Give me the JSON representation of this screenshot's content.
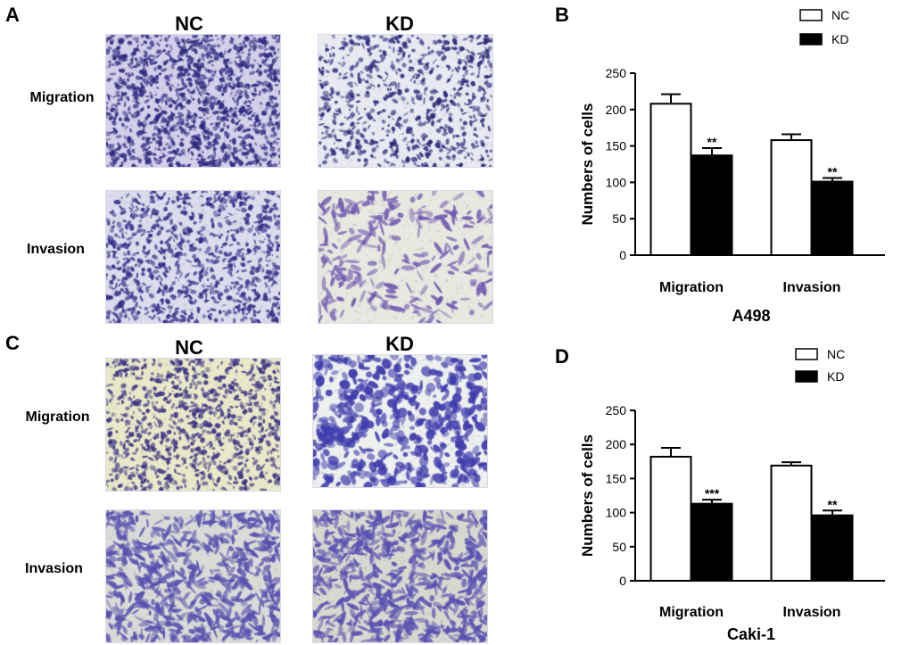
{
  "panels": {
    "A": {
      "letter": "A",
      "col_headers": [
        "NC",
        "KD"
      ],
      "row_labels": [
        "Migration",
        "Invasion"
      ],
      "images": [
        {
          "name": "micrograph-a498-nc-migration",
          "bg": "#d4d0ea",
          "fg": "#2f2a80",
          "density": 1200,
          "cell": "small"
        },
        {
          "name": "micrograph-a498-kd-migration",
          "bg": "#e8e9f1",
          "fg": "#2c2a7a",
          "density": 700,
          "cell": "small"
        },
        {
          "name": "micrograph-a498-nc-invasion",
          "bg": "#dcdcec",
          "fg": "#332d88",
          "density": 900,
          "cell": "small"
        },
        {
          "name": "micrograph-a498-kd-invasion",
          "bg": "#e7e8df",
          "fg": "#6f58b0",
          "density": 230,
          "cell": "elongated"
        }
      ]
    },
    "C": {
      "letter": "C",
      "col_headers": [
        "NC",
        "KD"
      ],
      "row_labels": [
        "Migration",
        "Invasion"
      ],
      "images": [
        {
          "name": "micrograph-caki1-nc-migration",
          "bg": "#e9e9c9",
          "fg": "#3d3485",
          "density": 900,
          "cell": "small"
        },
        {
          "name": "micrograph-caki1-kd-migration",
          "bg": "#eef0ee",
          "fg": "#3f3cad",
          "density": 500,
          "cell": "blob"
        },
        {
          "name": "micrograph-caki1-nc-invasion",
          "bg": "#d9dbd6",
          "fg": "#5a4fb0",
          "density": 600,
          "cell": "elongated"
        },
        {
          "name": "micrograph-caki1-kd-invasion",
          "bg": "#d8d8cf",
          "fg": "#5a50b2",
          "density": 600,
          "cell": "elongated"
        }
      ]
    }
  },
  "chart_data": [
    {
      "panel": "B",
      "type": "bar",
      "categories": [
        "Migration",
        "Invasion"
      ],
      "series": [
        {
          "name": "NC",
          "values": [
            208,
            158
          ],
          "errors": [
            13,
            8
          ],
          "fill": "#ffffff"
        },
        {
          "name": "KD",
          "values": [
            137,
            101
          ],
          "errors": [
            10,
            5
          ],
          "fill": "#000000"
        }
      ],
      "significance": [
        {
          "category": "Migration",
          "series": "KD",
          "label": "**"
        },
        {
          "category": "Invasion",
          "series": "KD",
          "label": "**"
        }
      ],
      "title": "A498",
      "xlabel": "A498",
      "ylabel": "Numbers of cells",
      "ylim": [
        0,
        250
      ],
      "yticks": [
        "0",
        "50",
        "100",
        "150",
        "200",
        "250"
      ],
      "legend_position": "top-right",
      "grid": false
    },
    {
      "panel": "D",
      "type": "bar",
      "categories": [
        "Migration",
        "Invasion"
      ],
      "series": [
        {
          "name": "NC",
          "values": [
            182,
            169
          ],
          "errors": [
            13,
            5
          ],
          "fill": "#ffffff"
        },
        {
          "name": "KD",
          "values": [
            113,
            96
          ],
          "errors": [
            6,
            7
          ],
          "fill": "#000000"
        }
      ],
      "significance": [
        {
          "category": "Migration",
          "series": "KD",
          "label": "***"
        },
        {
          "category": "Invasion",
          "series": "KD",
          "label": "**"
        }
      ],
      "title": "Caki-1",
      "xlabel": "Caki-1",
      "ylabel": "Numbers of cells",
      "ylim": [
        0,
        250
      ],
      "yticks": [
        "0",
        "50",
        "100",
        "150",
        "200",
        "250"
      ],
      "legend_position": "top-right",
      "grid": false
    }
  ],
  "chart_letters": [
    "B",
    "D"
  ]
}
